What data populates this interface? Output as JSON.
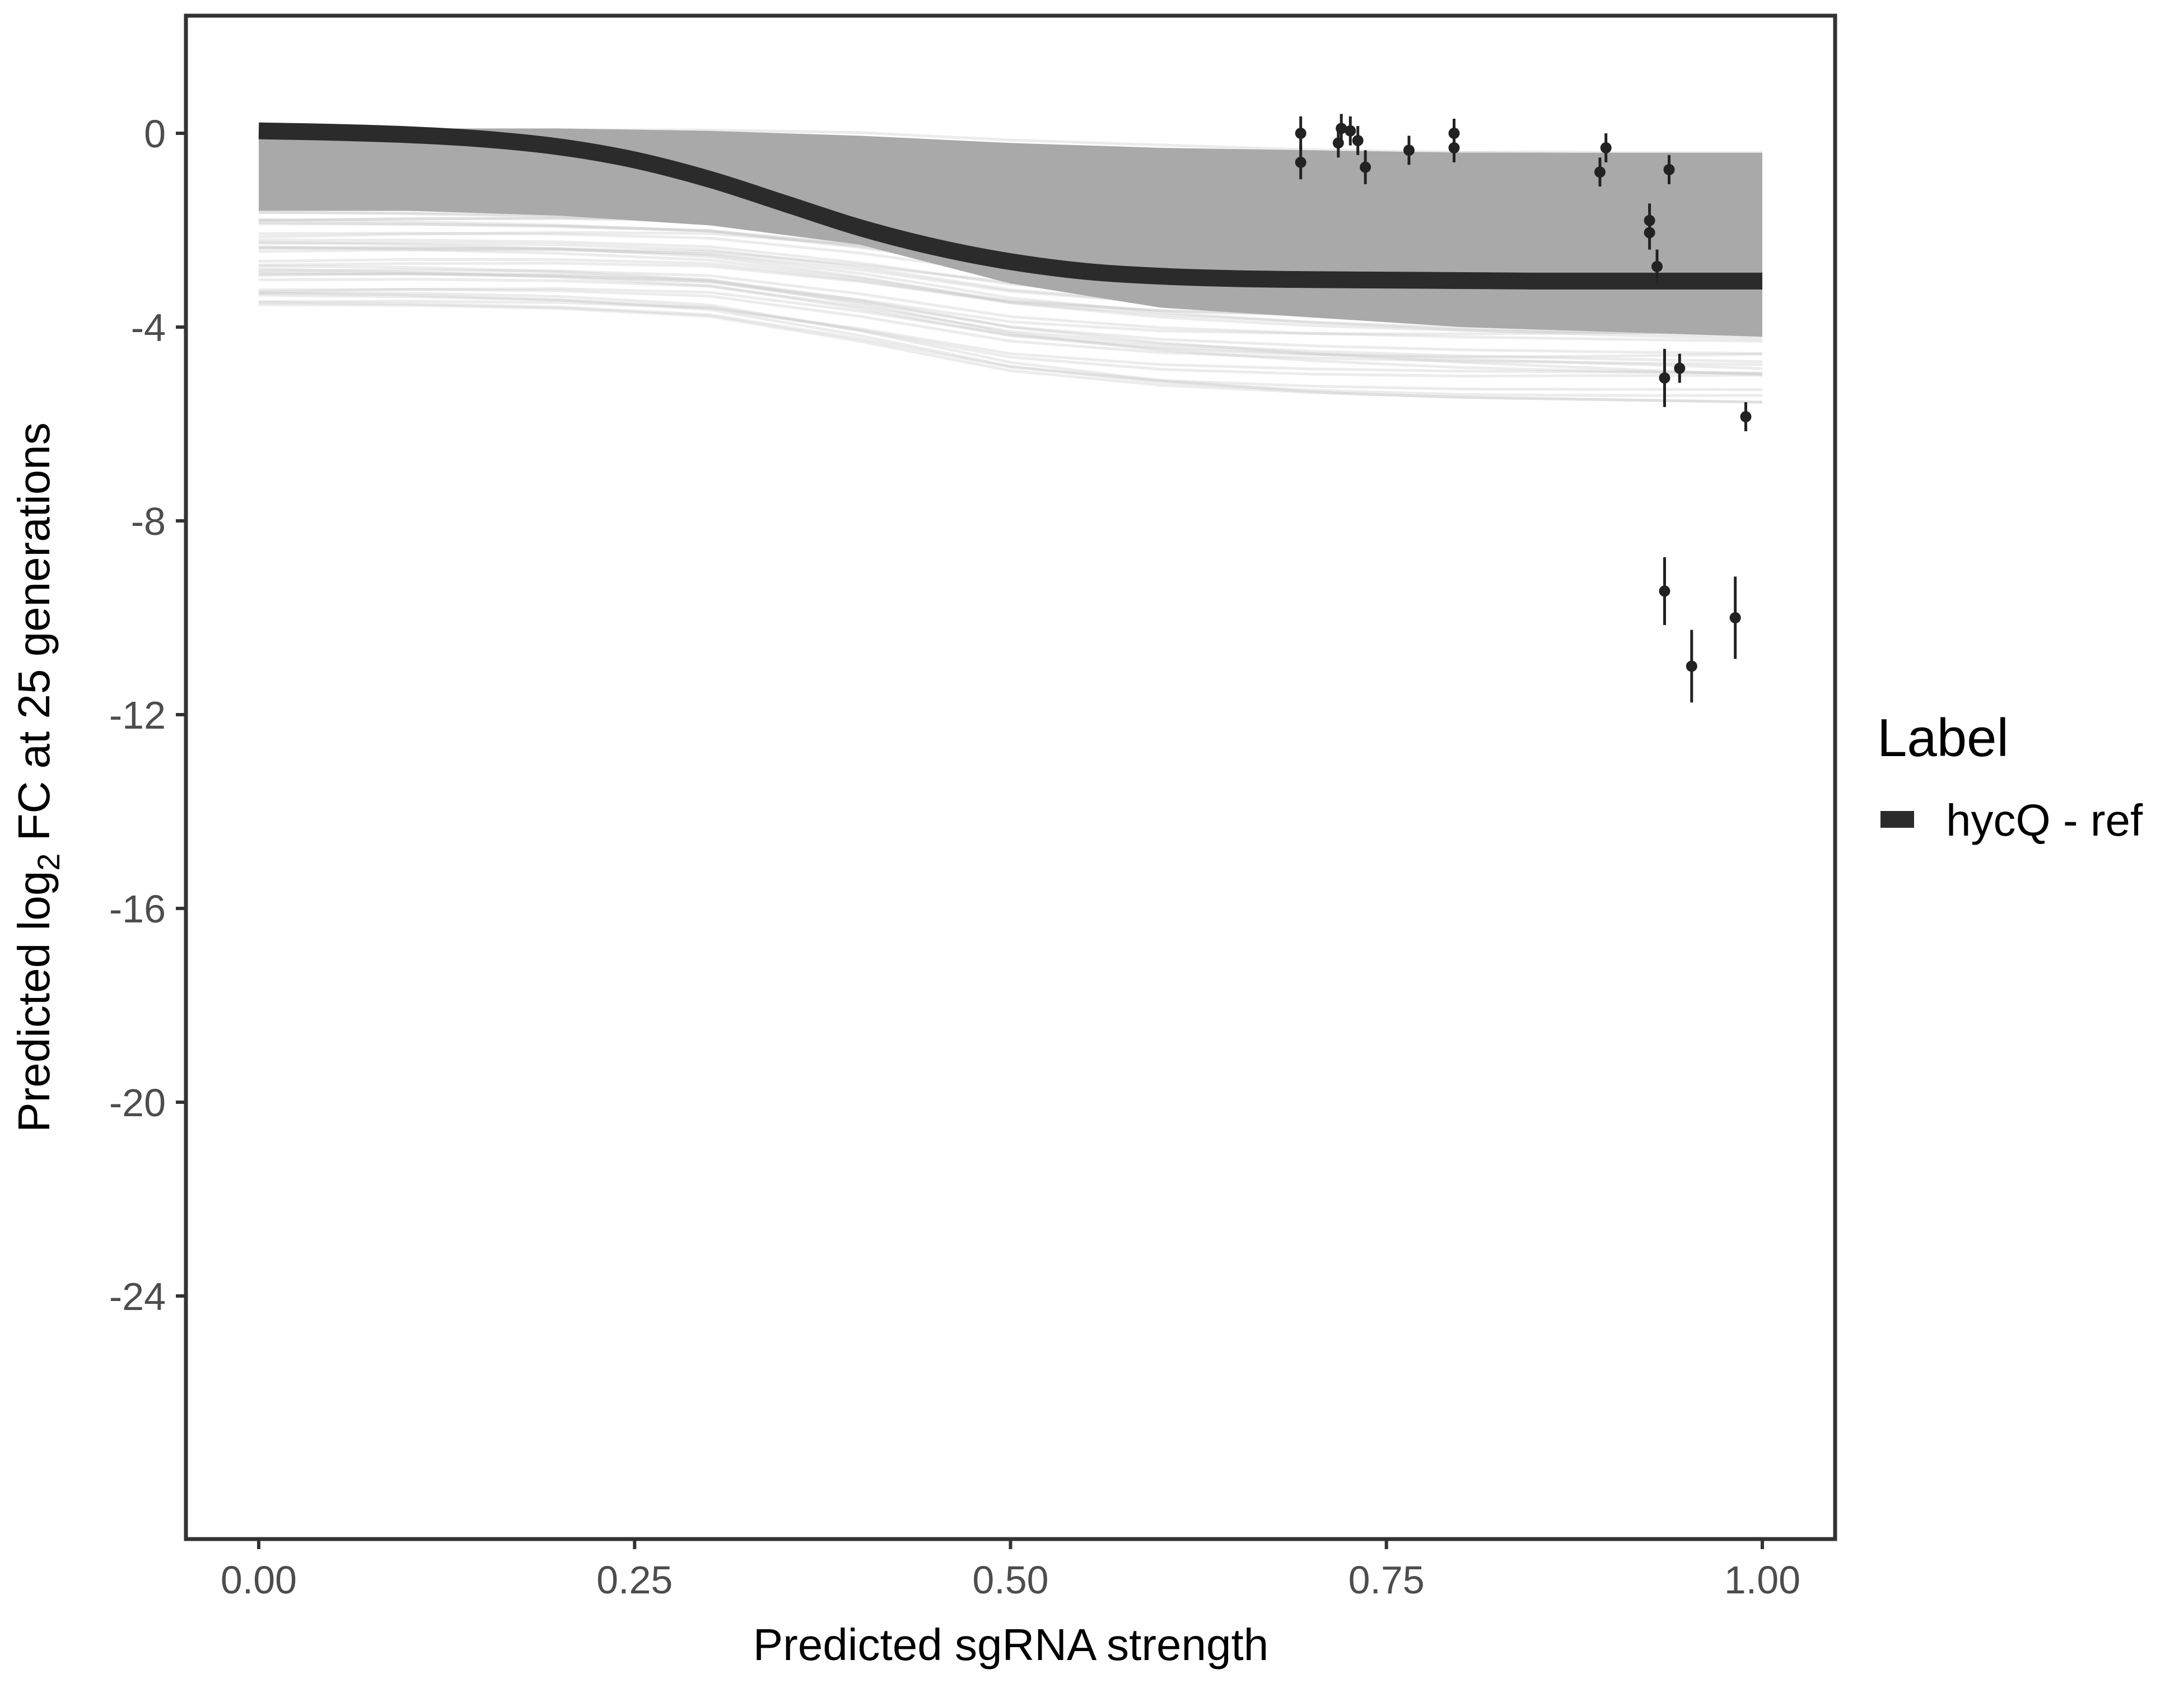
{
  "colors": {
    "panel_border": "#333333",
    "main_curve": "#2b2b2b",
    "band": "#a9a9a9",
    "draws": "#c8c8c8",
    "points": "#222222",
    "tick_text": "#4d4d4d"
  },
  "chart_data": {
    "type": "line",
    "title": "",
    "xlabel": "Predicted sgRNA strength",
    "ylabel_main": "Predicted  log",
    "ylabel_sub": "2",
    "ylabel_rest": " FC at 25 generations",
    "xlim": [
      -0.1,
      1.1
    ],
    "ylim": [
      -29.5,
      2.5
    ],
    "x_ticks": [
      0.0,
      0.25,
      0.5,
      0.75,
      1.0
    ],
    "x_tick_labels": [
      "0.00",
      "0.25",
      "0.50",
      "0.75",
      "1.00"
    ],
    "y_ticks": [
      0,
      -4,
      -8,
      -12,
      -16,
      -20,
      -24
    ],
    "y_tick_labels": [
      "0",
      "-4",
      "-8",
      "-12",
      "-16",
      "-20",
      "-24"
    ],
    "grid": false,
    "legend": {
      "title": "Label",
      "position": "right",
      "entries": [
        {
          "label": "hycQ - ref",
          "color": "#2b2b2b"
        }
      ]
    },
    "series": [
      {
        "name": "hycQ - ref",
        "kind": "fitted-curve",
        "x": [
          0.0,
          0.05,
          0.1,
          0.15,
          0.2,
          0.25,
          0.3,
          0.35,
          0.4,
          0.45,
          0.5,
          0.55,
          0.6,
          0.65,
          0.7,
          0.75,
          0.8,
          0.85,
          0.9,
          0.95,
          1.0
        ],
        "y": [
          0.05,
          0.02,
          -0.03,
          -0.12,
          -0.28,
          -0.55,
          -0.95,
          -1.45,
          -1.95,
          -2.35,
          -2.65,
          -2.85,
          -2.95,
          -3.0,
          -3.02,
          -3.03,
          -3.04,
          -3.05,
          -3.05,
          -3.05,
          -3.05
        ]
      }
    ],
    "band": {
      "x": [
        0.0,
        0.1,
        0.2,
        0.3,
        0.4,
        0.5,
        0.6,
        0.7,
        0.8,
        0.9,
        1.0
      ],
      "upper": [
        0.1,
        0.1,
        0.1,
        0.05,
        -0.05,
        -0.2,
        -0.3,
        -0.35,
        -0.4,
        -0.4,
        -0.4
      ],
      "lower": [
        -1.6,
        -1.6,
        -1.7,
        -1.9,
        -2.3,
        -3.1,
        -3.6,
        -3.8,
        -4.0,
        -4.1,
        -4.2
      ]
    },
    "draw_envelope": {
      "x": [
        0.0,
        0.1,
        0.2,
        0.3,
        0.4,
        0.5,
        0.6,
        0.7,
        0.8,
        0.9,
        1.0
      ],
      "upper": [
        0.1,
        0.1,
        0.1,
        0.1,
        0.05,
        -0.1,
        -0.2,
        -0.3,
        -0.35,
        -0.4,
        -0.4
      ],
      "lower": [
        -3.6,
        -3.6,
        -3.65,
        -3.8,
        -4.3,
        -4.9,
        -5.2,
        -5.35,
        -5.45,
        -5.5,
        -5.55
      ]
    },
    "points": [
      {
        "x": 0.693,
        "y": 0.0,
        "err": 0.35
      },
      {
        "x": 0.693,
        "y": -0.6,
        "err": 0.35
      },
      {
        "x": 0.718,
        "y": -0.2,
        "err": 0.3
      },
      {
        "x": 0.72,
        "y": 0.1,
        "err": 0.3
      },
      {
        "x": 0.726,
        "y": 0.05,
        "err": 0.3
      },
      {
        "x": 0.731,
        "y": -0.15,
        "err": 0.3
      },
      {
        "x": 0.736,
        "y": -0.7,
        "err": 0.35
      },
      {
        "x": 0.765,
        "y": -0.35,
        "err": 0.3
      },
      {
        "x": 0.795,
        "y": 0.0,
        "err": 0.3
      },
      {
        "x": 0.795,
        "y": -0.3,
        "err": 0.3
      },
      {
        "x": 0.892,
        "y": -0.8,
        "err": 0.3
      },
      {
        "x": 0.896,
        "y": -0.3,
        "err": 0.3
      },
      {
        "x": 0.925,
        "y": -1.8,
        "err": 0.35
      },
      {
        "x": 0.925,
        "y": -2.05,
        "err": 0.35
      },
      {
        "x": 0.93,
        "y": -2.75,
        "err": 0.35
      },
      {
        "x": 0.938,
        "y": -0.75,
        "err": 0.3
      },
      {
        "x": 0.935,
        "y": -5.05,
        "err": 0.6
      },
      {
        "x": 0.945,
        "y": -4.85,
        "err": 0.3
      },
      {
        "x": 0.935,
        "y": -9.45,
        "err": 0.7
      },
      {
        "x": 0.953,
        "y": -11.0,
        "err": 0.75
      },
      {
        "x": 0.982,
        "y": -10.0,
        "err": 0.85
      },
      {
        "x": 0.989,
        "y": -5.85,
        "err": 0.3
      }
    ]
  }
}
